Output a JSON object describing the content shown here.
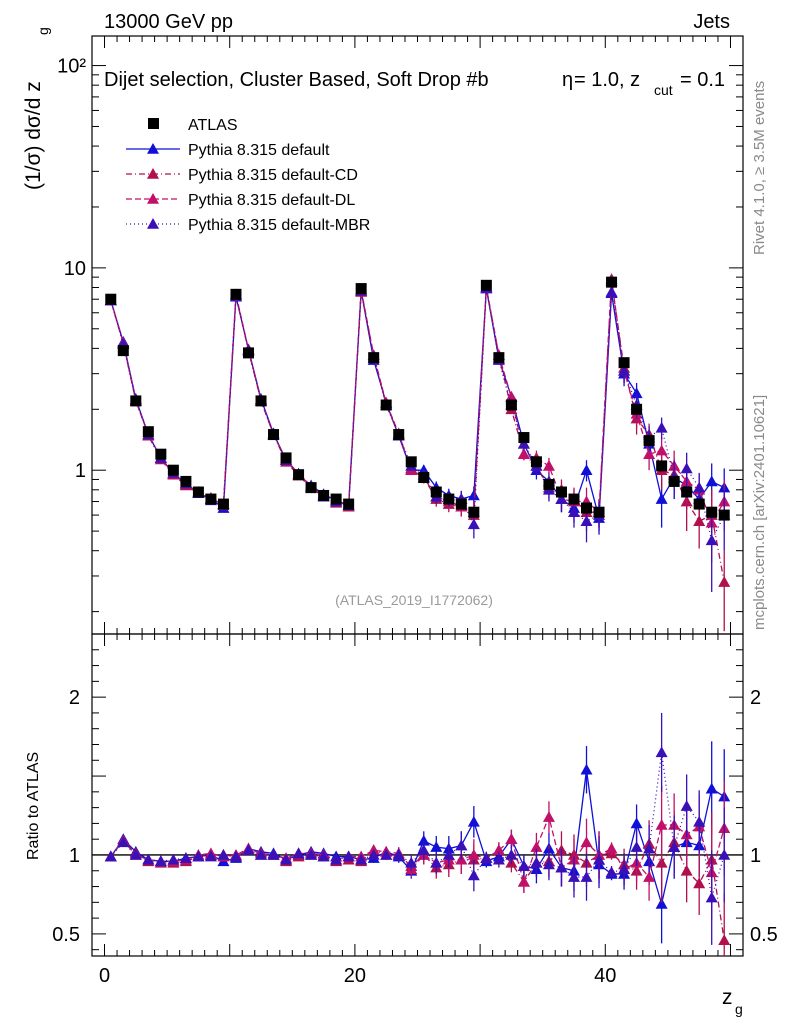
{
  "header": {
    "left": "13000 GeV pp",
    "right": "Jets",
    "side_top": "Rivet 4.1.0, ≥ 3.5M events",
    "side_bottom": "mcplots.cern.ch [arXiv:2401.10621]",
    "watermark": "(ATLAS_2019_I1772062)"
  },
  "chart_data": {
    "type": "scatter",
    "title": "Dijet selection, Cluster Based, Soft Drop #b",
    "title_suffix": "= 1.0, z",
    "title_sub": "cut",
    "title_end": "= 0.1",
    "title_greek": "η",
    "xlabel": "z",
    "xlabel_sub": "g",
    "ylabel": "(1/σ) dσ/d z",
    "ylabel_sub": "g",
    "ratio_ylabel": "Ratio to ATLAS",
    "xlim": [
      -1,
      51
    ],
    "ylim": [
      0.155,
      140
    ],
    "yscale": "log",
    "ratio_ylim": [
      0.36,
      2.4
    ],
    "xticks": [
      "0",
      "20",
      "40"
    ],
    "yticks": [
      "1",
      "10",
      "10²"
    ],
    "ratio_yticks": [
      "0.5",
      "1",
      "2"
    ],
    "x": [
      0.5,
      1.5,
      2.5,
      3.5,
      4.5,
      5.5,
      6.5,
      7.5,
      8.5,
      9.5,
      10.5,
      11.5,
      12.5,
      13.5,
      14.5,
      15.5,
      16.5,
      17.5,
      18.5,
      19.5,
      20.5,
      21.5,
      22.5,
      23.5,
      24.5,
      25.5,
      26.5,
      27.5,
      28.5,
      29.5,
      30.5,
      31.5,
      32.5,
      33.5,
      34.5,
      35.5,
      36.5,
      37.5,
      38.5,
      39.5,
      40.5,
      41.5,
      42.5,
      43.5,
      44.5,
      45.5,
      46.5,
      47.5,
      48.5,
      49.5
    ],
    "legend": [
      {
        "label": "ATLAS",
        "color": "#000000",
        "marker": "square",
        "dash": ""
      },
      {
        "label": "Pythia 8.315 default",
        "color": "#1010d8",
        "marker": "triangle",
        "dash": ""
      },
      {
        "label": "Pythia 8.315 default-CD",
        "color": "#b0104e",
        "marker": "triangle",
        "dash": "6,3,1,3"
      },
      {
        "label": "Pythia 8.315 default-DL",
        "color": "#c0106a",
        "marker": "triangle",
        "dash": "6,3"
      },
      {
        "label": "Pythia 8.315 default-MBR",
        "color": "#3a10b8",
        "marker": "triangle",
        "dash": "1,3"
      }
    ],
    "atlas": [
      7.0,
      3.9,
      2.2,
      1.55,
      1.2,
      1.0,
      0.88,
      0.78,
      0.72,
      0.68,
      7.4,
      3.8,
      2.2,
      1.5,
      1.15,
      0.95,
      0.82,
      0.75,
      0.72,
      0.68,
      7.9,
      3.6,
      2.1,
      1.5,
      1.1,
      0.92,
      0.78,
      0.72,
      0.68,
      0.62,
      8.2,
      3.6,
      2.1,
      1.45,
      1.1,
      0.85,
      0.78,
      0.72,
      0.65,
      0.62,
      8.5,
      3.4,
      2.0,
      1.4,
      1.05,
      0.88,
      0.78,
      0.68,
      0.62,
      0.6
    ],
    "series": [
      {
        "name": "Pythia 8.315 default",
        "color": "#1010d8",
        "dash": "",
        "values": [
          6.9,
          4.3,
          2.25,
          1.5,
          1.15,
          0.96,
          0.86,
          0.77,
          0.72,
          0.65,
          7.2,
          3.95,
          2.25,
          1.52,
          1.12,
          0.95,
          0.84,
          0.76,
          0.71,
          0.67,
          7.7,
          3.5,
          2.15,
          1.48,
          1.0,
          1.0,
          0.82,
          0.75,
          0.72,
          0.75,
          7.9,
          3.55,
          2.3,
          1.35,
          1.0,
          0.88,
          0.72,
          0.65,
          1.0,
          0.58,
          7.5,
          3.0,
          2.4,
          1.35,
          0.72,
          0.92,
          0.84,
          0.72,
          0.88,
          0.82
        ],
        "errors": [
          0.1,
          0.1,
          0.06,
          0.05,
          0.04,
          0.03,
          0.03,
          0.03,
          0.03,
          0.03,
          0.15,
          0.1,
          0.06,
          0.05,
          0.04,
          0.04,
          0.03,
          0.03,
          0.03,
          0.03,
          0.15,
          0.1,
          0.07,
          0.06,
          0.05,
          0.06,
          0.06,
          0.06,
          0.07,
          0.08,
          0.2,
          0.12,
          0.1,
          0.08,
          0.1,
          0.1,
          0.1,
          0.1,
          0.12,
          0.1,
          0.3,
          0.4,
          0.3,
          0.2,
          0.2,
          0.2,
          0.2,
          0.15,
          0.2,
          0.2
        ],
        "ratio": [
          0.99,
          1.1,
          1.02,
          0.97,
          0.96,
          0.96,
          0.98,
          0.99,
          1.0,
          0.96,
          0.98,
          1.04,
          1.02,
          1.01,
          0.97,
          1.0,
          1.02,
          1.01,
          0.99,
          0.99,
          0.97,
          0.98,
          1.02,
          0.99,
          0.9,
          1.09,
          1.05,
          1.04,
          1.06,
          1.21,
          0.96,
          0.99,
          1.1,
          0.93,
          0.91,
          1.04,
          0.92,
          0.9,
          1.54,
          0.94,
          0.88,
          0.88,
          1.2,
          0.96,
          0.69,
          1.05,
          1.08,
          1.06,
          1.42,
          1.37
        ],
        "ratio_err": [
          0.015,
          0.02,
          0.02,
          0.02,
          0.02,
          0.02,
          0.02,
          0.02,
          0.02,
          0.02,
          0.02,
          0.02,
          0.02,
          0.02,
          0.02,
          0.02,
          0.02,
          0.02,
          0.02,
          0.02,
          0.02,
          0.03,
          0.03,
          0.04,
          0.05,
          0.06,
          0.07,
          0.08,
          0.09,
          0.1,
          0.04,
          0.05,
          0.06,
          0.07,
          0.09,
          0.1,
          0.12,
          0.13,
          0.15,
          0.15,
          0.04,
          0.1,
          0.12,
          0.15,
          0.25,
          0.2,
          0.2,
          0.2,
          0.3,
          0.3
        ]
      },
      {
        "name": "Pythia 8.315 default-CD",
        "color": "#b0104e",
        "dash": "6,3,1,3",
        "values": [
          6.9,
          4.2,
          2.22,
          1.48,
          1.13,
          0.95,
          0.84,
          0.77,
          0.72,
          0.68,
          7.3,
          3.9,
          2.2,
          1.5,
          1.1,
          0.94,
          0.82,
          0.74,
          0.69,
          0.66,
          7.6,
          3.7,
          2.1,
          1.5,
          1.02,
          0.92,
          0.72,
          0.68,
          0.66,
          0.6,
          8.0,
          3.7,
          2.0,
          1.2,
          1.05,
          0.82,
          0.8,
          0.72,
          0.62,
          0.62,
          8.6,
          3.2,
          1.8,
          1.5,
          1.0,
          0.95,
          0.7,
          0.56,
          0.6,
          0.28
        ],
        "errors": [
          0.1,
          0.1,
          0.06,
          0.05,
          0.04,
          0.03,
          0.03,
          0.03,
          0.03,
          0.03,
          0.15,
          0.1,
          0.06,
          0.05,
          0.04,
          0.04,
          0.03,
          0.03,
          0.03,
          0.03,
          0.15,
          0.1,
          0.07,
          0.06,
          0.05,
          0.06,
          0.06,
          0.06,
          0.07,
          0.08,
          0.2,
          0.12,
          0.1,
          0.08,
          0.1,
          0.1,
          0.1,
          0.1,
          0.12,
          0.1,
          0.3,
          0.4,
          0.3,
          0.2,
          0.2,
          0.2,
          0.2,
          0.15,
          0.2,
          0.12
        ],
        "ratio": [
          0.99,
          1.09,
          1.01,
          0.96,
          0.95,
          0.95,
          0.96,
          0.99,
          1.0,
          1.0,
          0.99,
          1.03,
          1.0,
          1.0,
          0.96,
          0.99,
          1.0,
          0.99,
          0.96,
          0.97,
          0.96,
          1.03,
          1.0,
          1.0,
          0.93,
          1.0,
          0.92,
          0.94,
          0.97,
          0.97,
          0.98,
          1.03,
          0.95,
          0.83,
          0.95,
          0.96,
          1.03,
          1.0,
          0.95,
          1.0,
          1.01,
          0.94,
          0.9,
          1.07,
          0.95,
          1.08,
          0.9,
          0.82,
          0.97,
          0.46
        ],
        "ratio_err": [
          0.015,
          0.02,
          0.02,
          0.02,
          0.02,
          0.02,
          0.02,
          0.02,
          0.02,
          0.02,
          0.02,
          0.02,
          0.02,
          0.02,
          0.02,
          0.02,
          0.02,
          0.02,
          0.02,
          0.02,
          0.02,
          0.03,
          0.03,
          0.04,
          0.05,
          0.06,
          0.07,
          0.08,
          0.09,
          0.1,
          0.04,
          0.05,
          0.06,
          0.07,
          0.09,
          0.1,
          0.12,
          0.13,
          0.15,
          0.15,
          0.04,
          0.1,
          0.12,
          0.15,
          0.25,
          0.2,
          0.2,
          0.2,
          0.3,
          0.3
        ]
      },
      {
        "name": "Pythia 8.315 default-DL",
        "color": "#c0106a",
        "dash": "6,3",
        "values": [
          6.95,
          4.25,
          2.2,
          1.5,
          1.15,
          0.96,
          0.85,
          0.78,
          0.73,
          0.67,
          7.4,
          3.95,
          2.22,
          1.5,
          1.13,
          0.96,
          0.83,
          0.75,
          0.7,
          0.67,
          7.8,
          3.7,
          2.15,
          1.52,
          1.0,
          0.92,
          0.74,
          0.7,
          0.66,
          0.62,
          8.0,
          3.7,
          2.3,
          1.2,
          1.15,
          1.05,
          0.72,
          0.7,
          0.7,
          0.62,
          8.8,
          3.1,
          1.9,
          1.2,
          1.25,
          1.05,
          0.88,
          0.8,
          0.55,
          0.7
        ],
        "errors": [
          0.1,
          0.1,
          0.06,
          0.05,
          0.04,
          0.03,
          0.03,
          0.03,
          0.03,
          0.03,
          0.15,
          0.1,
          0.06,
          0.05,
          0.04,
          0.04,
          0.03,
          0.03,
          0.03,
          0.03,
          0.15,
          0.1,
          0.07,
          0.06,
          0.05,
          0.06,
          0.06,
          0.06,
          0.07,
          0.08,
          0.2,
          0.12,
          0.1,
          0.08,
          0.1,
          0.1,
          0.1,
          0.1,
          0.12,
          0.1,
          0.3,
          0.4,
          0.3,
          0.2,
          0.2,
          0.2,
          0.2,
          0.15,
          0.2,
          0.2
        ],
        "ratio": [
          0.99,
          1.09,
          1.0,
          0.97,
          0.96,
          0.96,
          0.97,
          1.0,
          1.01,
          0.99,
          1.0,
          1.04,
          1.01,
          1.0,
          0.98,
          1.01,
          1.01,
          1.0,
          0.97,
          0.99,
          0.99,
          1.03,
          1.02,
          1.01,
          0.91,
          1.0,
          0.95,
          0.97,
          0.97,
          1.0,
          0.98,
          1.03,
          1.1,
          0.83,
          1.05,
          1.24,
          0.92,
          0.97,
          1.08,
          1.0,
          1.04,
          0.91,
          0.95,
          0.86,
          1.19,
          1.19,
          1.13,
          1.18,
          0.89,
          1.17
        ],
        "ratio_err": [
          0.015,
          0.02,
          0.02,
          0.02,
          0.02,
          0.02,
          0.02,
          0.02,
          0.02,
          0.02,
          0.02,
          0.02,
          0.02,
          0.02,
          0.02,
          0.02,
          0.02,
          0.02,
          0.02,
          0.02,
          0.02,
          0.03,
          0.03,
          0.04,
          0.05,
          0.06,
          0.07,
          0.08,
          0.09,
          0.1,
          0.04,
          0.05,
          0.06,
          0.07,
          0.09,
          0.1,
          0.12,
          0.13,
          0.15,
          0.15,
          0.04,
          0.1,
          0.12,
          0.15,
          0.25,
          0.2,
          0.2,
          0.2,
          0.3,
          0.3
        ]
      },
      {
        "name": "Pythia 8.315 default-MBR",
        "color": "#3a10b8",
        "dash": "1,3",
        "values": [
          6.9,
          4.2,
          2.2,
          1.5,
          1.15,
          0.97,
          0.86,
          0.77,
          0.71,
          0.68,
          7.3,
          3.9,
          2.2,
          1.5,
          1.12,
          0.96,
          0.82,
          0.74,
          0.7,
          0.67,
          7.7,
          3.6,
          2.1,
          1.5,
          1.05,
          0.95,
          0.74,
          0.72,
          0.72,
          0.54,
          8.0,
          3.5,
          2.1,
          1.35,
          1.05,
          0.8,
          0.72,
          0.62,
          0.56,
          0.6,
          7.6,
          3.1,
          2.1,
          1.45,
          1.62,
          0.92,
          1.02,
          0.82,
          0.45,
          0.6
        ],
        "errors": [
          0.1,
          0.1,
          0.06,
          0.05,
          0.04,
          0.03,
          0.03,
          0.03,
          0.03,
          0.03,
          0.15,
          0.1,
          0.06,
          0.05,
          0.04,
          0.04,
          0.03,
          0.03,
          0.03,
          0.03,
          0.15,
          0.1,
          0.07,
          0.06,
          0.05,
          0.06,
          0.06,
          0.06,
          0.07,
          0.08,
          0.2,
          0.12,
          0.1,
          0.08,
          0.1,
          0.1,
          0.1,
          0.1,
          0.12,
          0.1,
          0.3,
          0.4,
          0.3,
          0.2,
          0.2,
          0.2,
          0.2,
          0.15,
          0.2,
          0.2
        ],
        "ratio": [
          0.99,
          1.08,
          1.0,
          0.97,
          0.96,
          0.97,
          0.98,
          0.99,
          0.99,
          1.0,
          0.99,
          1.03,
          1.0,
          1.0,
          0.97,
          1.01,
          1.0,
          0.99,
          0.97,
          0.99,
          0.97,
          1.0,
          1.0,
          1.0,
          0.95,
          1.03,
          0.95,
          1.0,
          1.06,
          0.87,
          0.98,
          0.97,
          1.0,
          0.93,
          0.95,
          0.94,
          0.92,
          0.86,
          0.86,
          0.97,
          0.89,
          0.91,
          1.05,
          1.04,
          1.65,
          1.05,
          1.31,
          1.21,
          0.73,
          1.0
        ],
        "ratio_err": [
          0.015,
          0.02,
          0.02,
          0.02,
          0.02,
          0.02,
          0.02,
          0.02,
          0.02,
          0.02,
          0.02,
          0.02,
          0.02,
          0.02,
          0.02,
          0.02,
          0.02,
          0.02,
          0.02,
          0.02,
          0.02,
          0.03,
          0.03,
          0.04,
          0.05,
          0.06,
          0.07,
          0.08,
          0.09,
          0.1,
          0.04,
          0.05,
          0.06,
          0.07,
          0.09,
          0.1,
          0.12,
          0.13,
          0.15,
          0.15,
          0.04,
          0.1,
          0.12,
          0.15,
          0.25,
          0.2,
          0.2,
          0.2,
          0.3,
          0.3
        ]
      }
    ]
  }
}
